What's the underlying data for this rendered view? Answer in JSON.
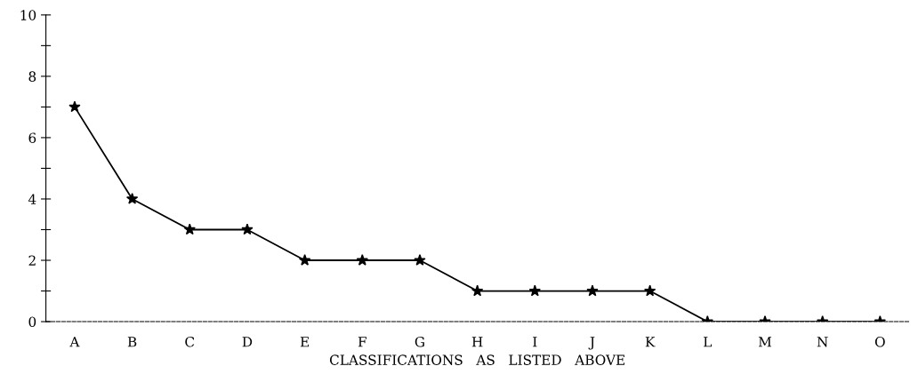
{
  "chart_data": {
    "type": "line",
    "xlabel": "CLASSIFICATIONS   AS   LISTED   ABOVE",
    "categories": [
      "A",
      "B",
      "C",
      "D",
      "E",
      "F",
      "G",
      "H",
      "I",
      "J",
      "K",
      "L",
      "M",
      "N",
      "O"
    ],
    "series": [
      {
        "color": "#000000",
        "values": [
          7,
          4,
          3,
          3,
          2,
          2,
          2,
          1,
          1,
          1,
          1,
          0,
          0,
          0,
          0
        ]
      }
    ],
    "ylim": [
      0,
      10
    ],
    "yticks": [
      0,
      {
        "value": 1,
        "label": null
      },
      2,
      {
        "value": 3,
        "label": null
      },
      4,
      {
        "value": 5,
        "label": null
      },
      6,
      {
        "value": 7,
        "label": null
      },
      8,
      {
        "value": 9,
        "label": null
      },
      10
    ],
    "grid": false,
    "legend": false,
    "marker": "star",
    "line_style": "solid"
  }
}
